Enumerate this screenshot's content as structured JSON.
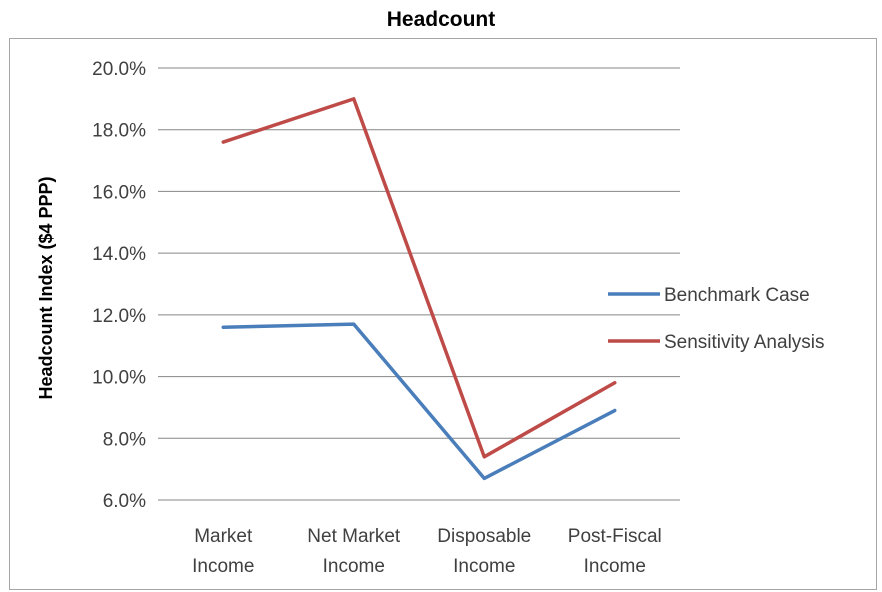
{
  "chart_data": {
    "type": "line",
    "title": "Headcount",
    "ylabel": "Headcount Index ($4 PPP)",
    "xlabel": "",
    "categories": [
      [
        "Market",
        "Income"
      ],
      [
        "Net Market",
        "Income"
      ],
      [
        "Disposable",
        "Income"
      ],
      [
        "Post-Fiscal",
        "Income"
      ]
    ],
    "ylim": [
      6.0,
      20.0
    ],
    "yticks": [
      6.0,
      8.0,
      10.0,
      12.0,
      14.0,
      16.0,
      18.0,
      20.0
    ],
    "ytick_labels": [
      "6.0%",
      "8.0%",
      "10.0%",
      "12.0%",
      "14.0%",
      "16.0%",
      "18.0%",
      "20.0%"
    ],
    "grid": true,
    "legend_position": "right",
    "series": [
      {
        "name": "Benchmark Case",
        "color": "#4a7ebb",
        "values": [
          11.6,
          11.7,
          6.7,
          8.9
        ]
      },
      {
        "name": "Sensitivity Analysis",
        "color": "#be4b48",
        "values": [
          17.6,
          19.0,
          7.4,
          9.8
        ]
      }
    ]
  }
}
